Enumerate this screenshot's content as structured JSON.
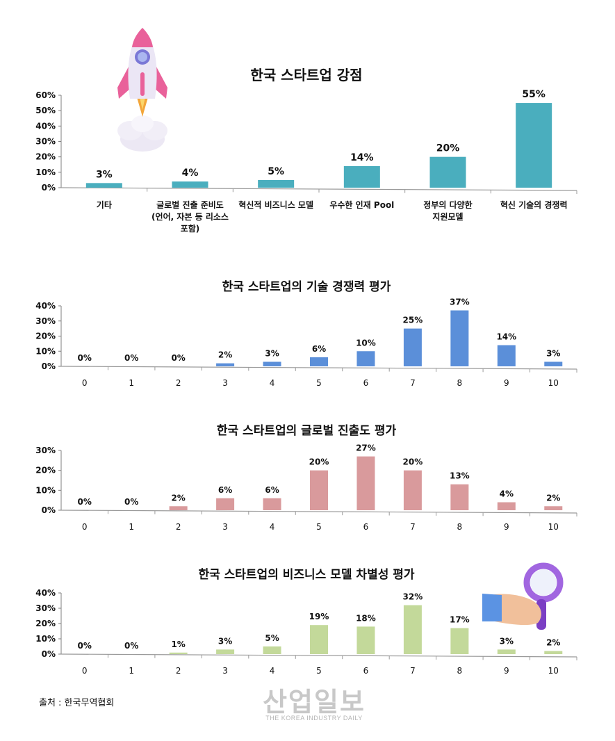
{
  "chart_data": [
    {
      "type": "bar",
      "title": "한국 스타트업 강점",
      "categories": [
        "기타",
        "글로벌 진출 준비도\n(언어, 자본 등 리소스\n포함)",
        "혁신적 비즈니스 모델",
        "우수한 인재 Pool",
        "정부의 다양한\n지원모델",
        "혁신 기술의 경쟁력"
      ],
      "values": [
        3,
        4,
        5,
        14,
        20,
        55
      ],
      "value_labels": [
        "3%",
        "4%",
        "5%",
        "14%",
        "20%",
        "55%"
      ],
      "yticks": [
        "0%",
        "10%",
        "20%",
        "30%",
        "40%",
        "50%",
        "60%"
      ],
      "ylim": [
        0,
        60
      ],
      "color": "#4aaebe",
      "grid": false
    },
    {
      "type": "bar",
      "title": "한국 스타트업의 기술 경쟁력 평가",
      "categories": [
        "0",
        "1",
        "2",
        "3",
        "4",
        "5",
        "6",
        "7",
        "8",
        "9",
        "10"
      ],
      "values": [
        0,
        0,
        0,
        2,
        3,
        6,
        10,
        25,
        37,
        14,
        3
      ],
      "value_labels": [
        "0%",
        "0%",
        "0%",
        "2%",
        "3%",
        "6%",
        "10%",
        "25%",
        "37%",
        "14%",
        "3%"
      ],
      "yticks": [
        "0%",
        "10%",
        "20%",
        "30%",
        "40%"
      ],
      "ylim": [
        0,
        40
      ],
      "color": "#5b8fd9",
      "grid": false
    },
    {
      "type": "bar",
      "title": "한국 스타트업의 글로벌 진출도 평가",
      "categories": [
        "0",
        "1",
        "2",
        "3",
        "4",
        "5",
        "6",
        "7",
        "8",
        "9",
        "10"
      ],
      "values": [
        0,
        0,
        2,
        6,
        6,
        20,
        27,
        20,
        13,
        4,
        2
      ],
      "value_labels": [
        "0%",
        "0%",
        "2%",
        "6%",
        "6%",
        "20%",
        "27%",
        "20%",
        "13%",
        "4%",
        "2%"
      ],
      "yticks": [
        "0%",
        "10%",
        "20%",
        "30%"
      ],
      "ylim": [
        0,
        30
      ],
      "color": "#d99a9c",
      "grid": false
    },
    {
      "type": "bar",
      "title": "한국 스타트업의 비즈니스 모델 차별성 평가",
      "categories": [
        "0",
        "1",
        "2",
        "3",
        "4",
        "5",
        "6",
        "7",
        "8",
        "9",
        "10"
      ],
      "values": [
        0,
        0,
        1,
        3,
        5,
        19,
        18,
        32,
        17,
        3,
        2
      ],
      "value_labels": [
        "0%",
        "0%",
        "1%",
        "3%",
        "5%",
        "19%",
        "18%",
        "32%",
        "17%",
        "3%",
        "2%"
      ],
      "yticks": [
        "0%",
        "10%",
        "20%",
        "30%",
        "40%"
      ],
      "ylim": [
        0,
        40
      ],
      "color": "#c3d99a",
      "grid": false
    }
  ],
  "source": "출처 : 한국무역협회",
  "watermark": {
    "main": "산업일보",
    "sub": "THE KOREA INDUSTRY DAILY"
  },
  "icons": [
    "rocket-icon",
    "magnifier-hand-icon"
  ]
}
